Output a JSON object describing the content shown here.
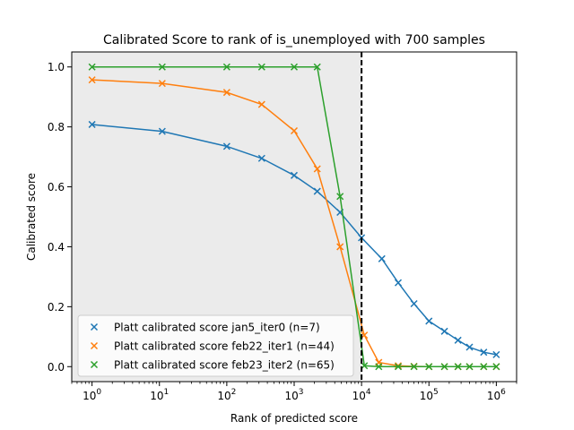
{
  "chart_data": {
    "type": "line",
    "title": "Calibrated Score to rank of is_unemployed with 700 samples",
    "xlabel": "Rank of predicted score",
    "ylabel": "Calibrated score",
    "xscale": "log",
    "xlim": [
      0.5,
      2000000
    ],
    "ylim": [
      -0.05,
      1.05
    ],
    "x_ticks": [
      {
        "value": 1,
        "base": "10",
        "exp": "0"
      },
      {
        "value": 10,
        "base": "10",
        "exp": "1"
      },
      {
        "value": 100,
        "base": "10",
        "exp": "2"
      },
      {
        "value": 1000,
        "base": "10",
        "exp": "3"
      },
      {
        "value": 10000,
        "base": "10",
        "exp": "4"
      },
      {
        "value": 100000,
        "base": "10",
        "exp": "5"
      },
      {
        "value": 1000000,
        "base": "10",
        "exp": "6"
      }
    ],
    "y_ticks": [
      {
        "value": 0.0,
        "label": "0.0"
      },
      {
        "value": 0.2,
        "label": "0.2"
      },
      {
        "value": 0.4,
        "label": "0.4"
      },
      {
        "value": 0.6,
        "label": "0.6"
      },
      {
        "value": 0.8,
        "label": "0.8"
      },
      {
        "value": 1.0,
        "label": "1.0"
      }
    ],
    "shaded_region": {
      "x_from": 0.5,
      "x_to": 10000,
      "color": "#ebebeb"
    },
    "vline": {
      "x": 10000,
      "color": "#000000",
      "style": "dashed"
    },
    "grid": false,
    "legend": {
      "position": "lower-left",
      "entries": [
        "Platt calibrated score jan5_iter0 (n=7)",
        "Platt calibrated score feb22_iter1 (n=44)",
        "Platt calibrated score feb23_iter2 (n=65)"
      ]
    },
    "series": [
      {
        "name": "Platt calibrated score jan5_iter0 (n=7)",
        "color": "#1f77b4",
        "x": [
          1,
          11,
          100,
          330,
          1000,
          2200,
          4800,
          10000,
          20000,
          35000,
          60000,
          100000,
          170000,
          270000,
          400000,
          650000,
          1000000
        ],
        "y": [
          0.808,
          0.785,
          0.735,
          0.695,
          0.638,
          0.585,
          0.515,
          0.43,
          0.36,
          0.28,
          0.21,
          0.152,
          0.118,
          0.088,
          0.065,
          0.048,
          0.04
        ]
      },
      {
        "name": "Platt calibrated score feb22_iter1 (n=44)",
        "color": "#ff7f0e",
        "x": [
          1,
          11,
          100,
          330,
          1000,
          2200,
          4800,
          11000,
          18000,
          35000,
          60000,
          100000,
          170000,
          270000,
          400000,
          650000,
          1000000
        ],
        "y": [
          0.957,
          0.945,
          0.915,
          0.875,
          0.787,
          0.66,
          0.4,
          0.105,
          0.014,
          0.003,
          0.001,
          0.0,
          0.0,
          0.0,
          0.0,
          0.0,
          0.0
        ]
      },
      {
        "name": "Platt calibrated score feb23_iter2 (n=65)",
        "color": "#2ca02c",
        "x": [
          1,
          11,
          100,
          330,
          1000,
          2200,
          4800,
          11000,
          18000,
          35000,
          60000,
          100000,
          170000,
          270000,
          400000,
          650000,
          1000000
        ],
        "y": [
          1.0,
          1.0,
          1.0,
          1.0,
          1.0,
          1.0,
          0.568,
          0.003,
          0.0,
          0.0,
          0.0,
          0.0,
          0.0,
          0.0,
          0.0,
          0.0,
          0.0
        ]
      }
    ]
  }
}
